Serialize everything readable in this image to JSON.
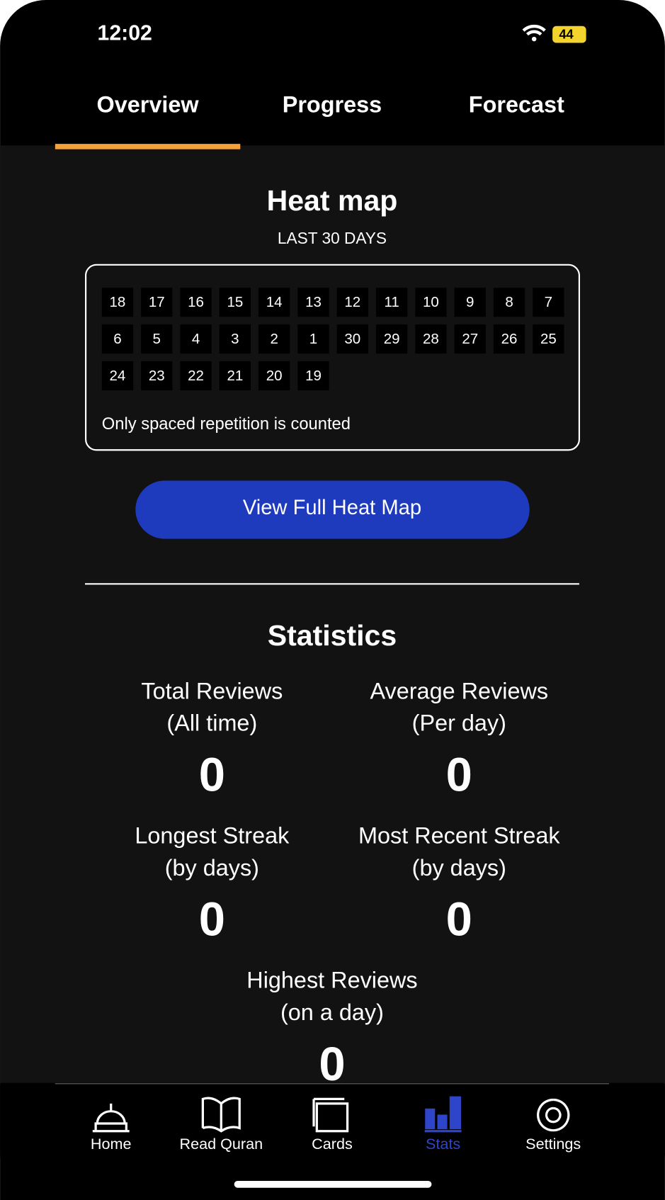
{
  "status_bar": {
    "time": "12:02",
    "battery": "44"
  },
  "tabs": [
    "Overview",
    "Progress",
    "Forecast"
  ],
  "heatmap": {
    "title": "Heat map",
    "subtitle": "LAST 30 DAYS",
    "cells": [
      18,
      17,
      16,
      15,
      14,
      13,
      12,
      11,
      10,
      9,
      8,
      7,
      6,
      5,
      4,
      3,
      2,
      1,
      30,
      29,
      28,
      27,
      26,
      25,
      24,
      23,
      22,
      21,
      20,
      19
    ],
    "note": "Only spaced repetition is counted",
    "button": "View Full Heat Map"
  },
  "statistics": {
    "title": "Statistics",
    "items": [
      {
        "label": "Total Reviews",
        "sublabel": "(All time)",
        "value": 0
      },
      {
        "label": "Average Reviews",
        "sublabel": "(Per day)",
        "value": 0
      },
      {
        "label": "Longest Streak",
        "sublabel": "(by days)",
        "value": 0
      },
      {
        "label": "Most Recent Streak",
        "sublabel": "(by days)",
        "value": 0
      },
      {
        "label": "Highest Reviews",
        "sublabel": "(on a day)",
        "value": 0
      }
    ]
  },
  "nav": [
    "Home",
    "Read Quran",
    "Cards",
    "Stats",
    "Settings"
  ]
}
